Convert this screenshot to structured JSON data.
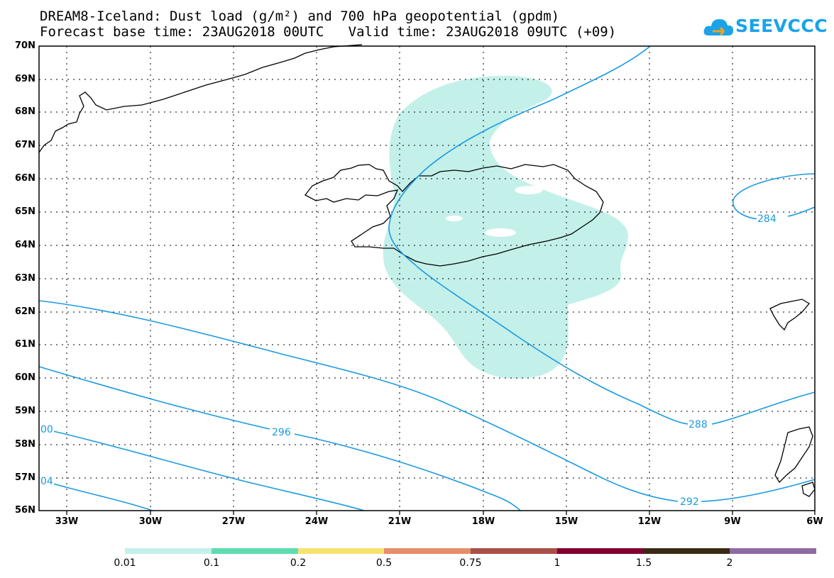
{
  "title": {
    "line1": "DREAM8-Iceland: Dust load (g/m²) and 700 hPa geopotential (gpdm)",
    "line2": "Forecast base time: 23AUG2018 00UTC   Valid time: 23AUG2018 09UTC (+09)"
  },
  "logo": {
    "text": "SEEVCCC",
    "color": "#1aa3e8"
  },
  "lat_labels": [
    "70N",
    "69N",
    "68N",
    "67N",
    "66N",
    "65N",
    "64N",
    "63N",
    "62N",
    "61N",
    "60N",
    "59N",
    "58N",
    "57N",
    "56N"
  ],
  "lon_labels": [
    "33W",
    "30W",
    "27W",
    "24W",
    "21W",
    "18W",
    "15W",
    "12W",
    "9W",
    "6W"
  ],
  "contour_labels": {
    "c284": "284",
    "c288": "288",
    "c292": "292",
    "c296": "296",
    "c300": "00",
    "c304": "04"
  },
  "colors": {
    "contour": "#1a9be0",
    "dust_fill": "#c4f0ea",
    "grid": "#000000"
  },
  "legend": {
    "colors": [
      "#c4f0ea",
      "#5edcb2",
      "#f6e36e",
      "#e68d6a",
      "#a85048",
      "#800030",
      "#3a2a14",
      "#8e6aa4"
    ],
    "labels": [
      "0.01",
      "0.1",
      "0.2",
      "0.5",
      "0.75",
      "1",
      "1.5",
      "2"
    ]
  }
}
